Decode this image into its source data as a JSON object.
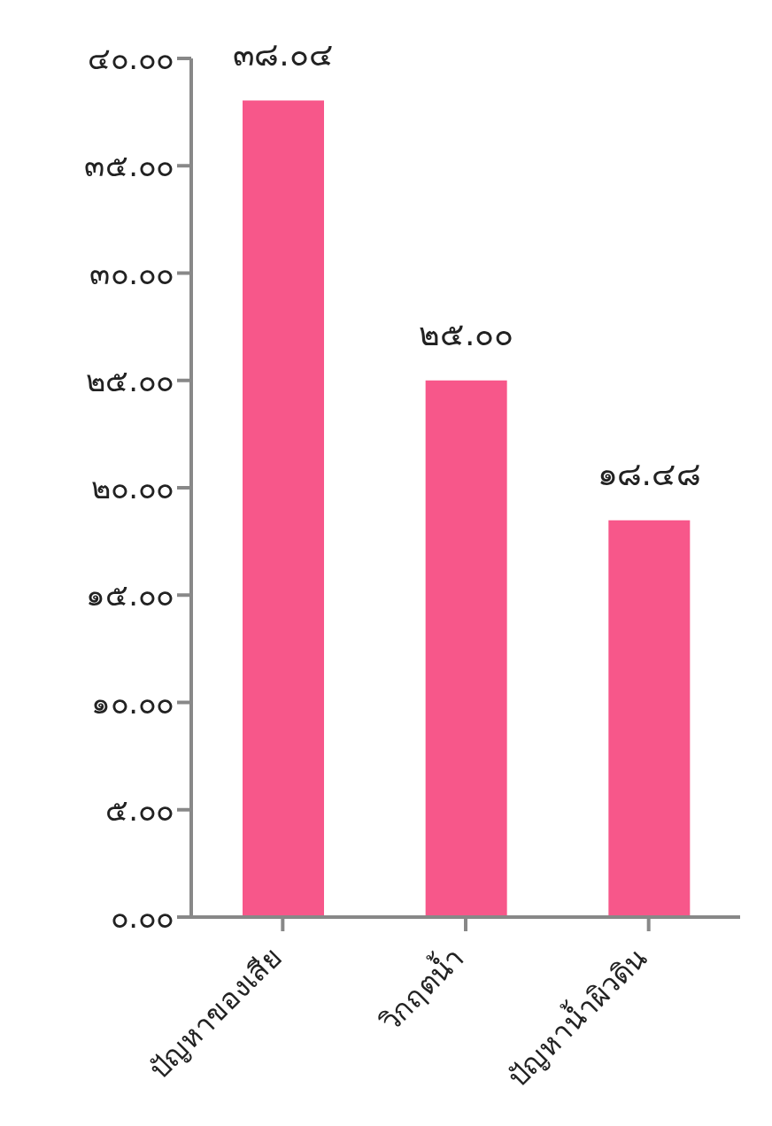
{
  "chart_data": {
    "type": "bar",
    "categories": [
      "ปัญหาของเสีย",
      "วิกฤตน้ำ",
      "ปัญหาน้ำผิวดิน"
    ],
    "values": [
      38.04,
      25.0,
      18.48
    ],
    "color": "#f7578a",
    "value_labels": [
      "๓๘.๐๔",
      "๒๕.๐๐",
      "๑๘.๔๘"
    ],
    "ylim": [
      0,
      40
    ],
    "yticks": [
      {
        "value": 0,
        "label": "๐.๐๐"
      },
      {
        "value": 5,
        "label": "๕.๐๐"
      },
      {
        "value": 10,
        "label": "๑๐.๐๐"
      },
      {
        "value": 15,
        "label": "๑๕.๐๐"
      },
      {
        "value": 20,
        "label": "๒๐.๐๐"
      },
      {
        "value": 25,
        "label": "๒๕.๐๐"
      },
      {
        "value": 30,
        "label": "๓๐.๐๐"
      },
      {
        "value": 35,
        "label": "๓๕.๐๐"
      },
      {
        "value": 40,
        "label": "๔๐.๐๐"
      }
    ],
    "grid": false,
    "legend": false
  }
}
